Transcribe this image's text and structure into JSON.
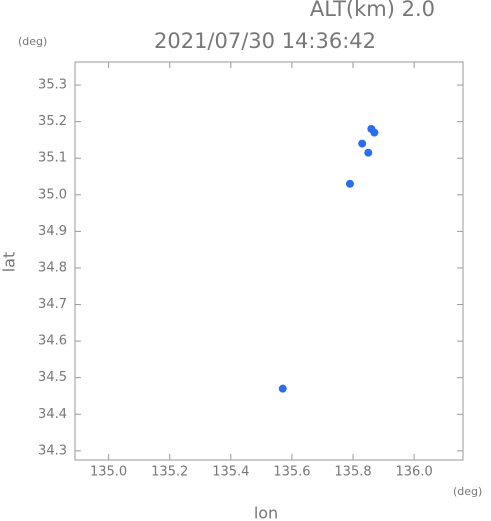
{
  "chart_data": {
    "type": "scatter",
    "title": "2021/07/30 14:36:42",
    "subtitle": "ALT(km) 2.0",
    "y_unit": "(deg)",
    "x_unit": "(deg)",
    "x_label": "lon",
    "y_label": "lat",
    "series": [
      {
        "color": "#2a6ef0",
        "x": [
          135.86,
          135.87,
          135.83,
          135.85,
          135.79,
          135.57
        ],
        "values": [
          35.18,
          35.17,
          35.14,
          35.115,
          35.03,
          34.47
        ]
      }
    ],
    "xlim": [
      134.89,
      136.16
    ],
    "ylim": [
      34.275,
      35.363
    ],
    "xticks": [
      {
        "value": 135,
        "label": "135.0"
      },
      135.2,
      135.4,
      135.6,
      135.8,
      {
        "value": 136,
        "label": "136.0"
      }
    ],
    "yticks": [
      34.3,
      34.4,
      34.5,
      34.6,
      34.7,
      34.8,
      34.9,
      {
        "value": 35,
        "label": "35.0"
      },
      35.1,
      35.2,
      35.3
    ]
  }
}
